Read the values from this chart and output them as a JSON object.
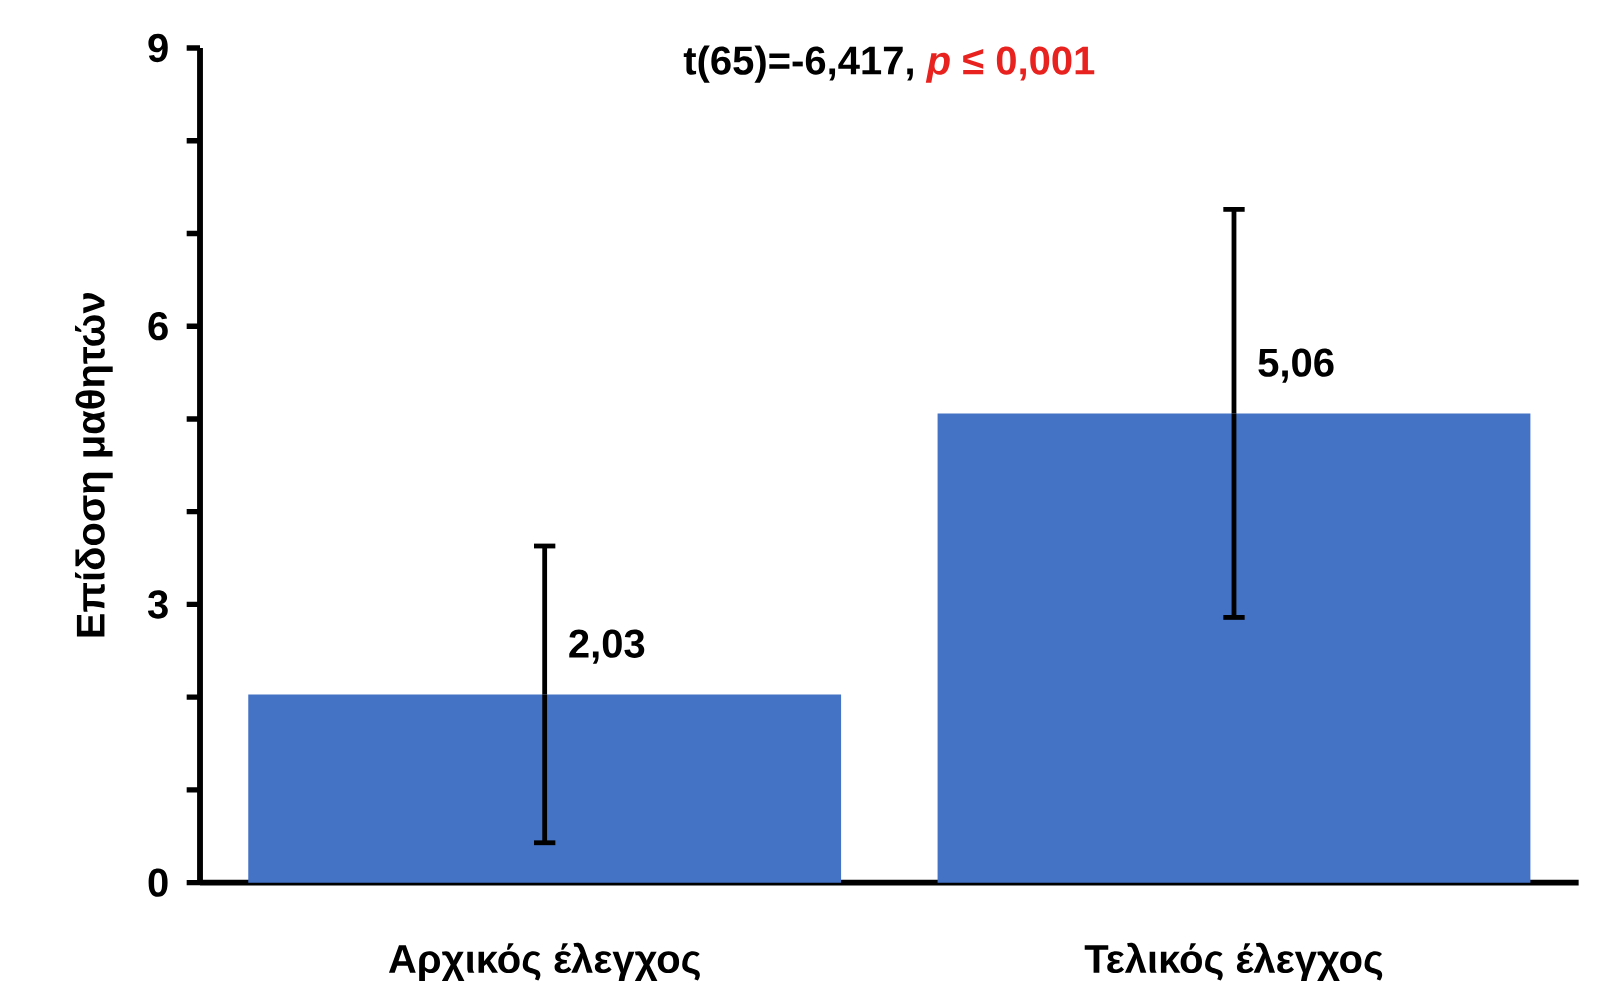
{
  "chart_data": {
    "type": "bar",
    "title": "t(65)=-6,417,",
    "annotations": [
      "*p* ≤ 0,001"
    ],
    "ylabel": "Επίδοση μαθητών",
    "categories": [
      "Αρχικός έλεγχος",
      "Τελικός έλεγχος"
    ],
    "values": [
      2.03,
      5.06
    ],
    "errors": [
      1.6,
      2.2
    ],
    "value_labels": [
      "2,03",
      "5,06"
    ],
    "color": "#4472c4",
    "ylim": [
      0,
      9
    ],
    "yticks": [
      0,
      {
        "value": 1,
        "label": null
      },
      {
        "value": 2,
        "label": null
      },
      3,
      {
        "value": 4,
        "label": null
      },
      {
        "value": 5,
        "label": null
      },
      6,
      {
        "value": 7,
        "label": null
      },
      {
        "value": 8,
        "label": null
      },
      9
    ],
    "grid": false
  }
}
